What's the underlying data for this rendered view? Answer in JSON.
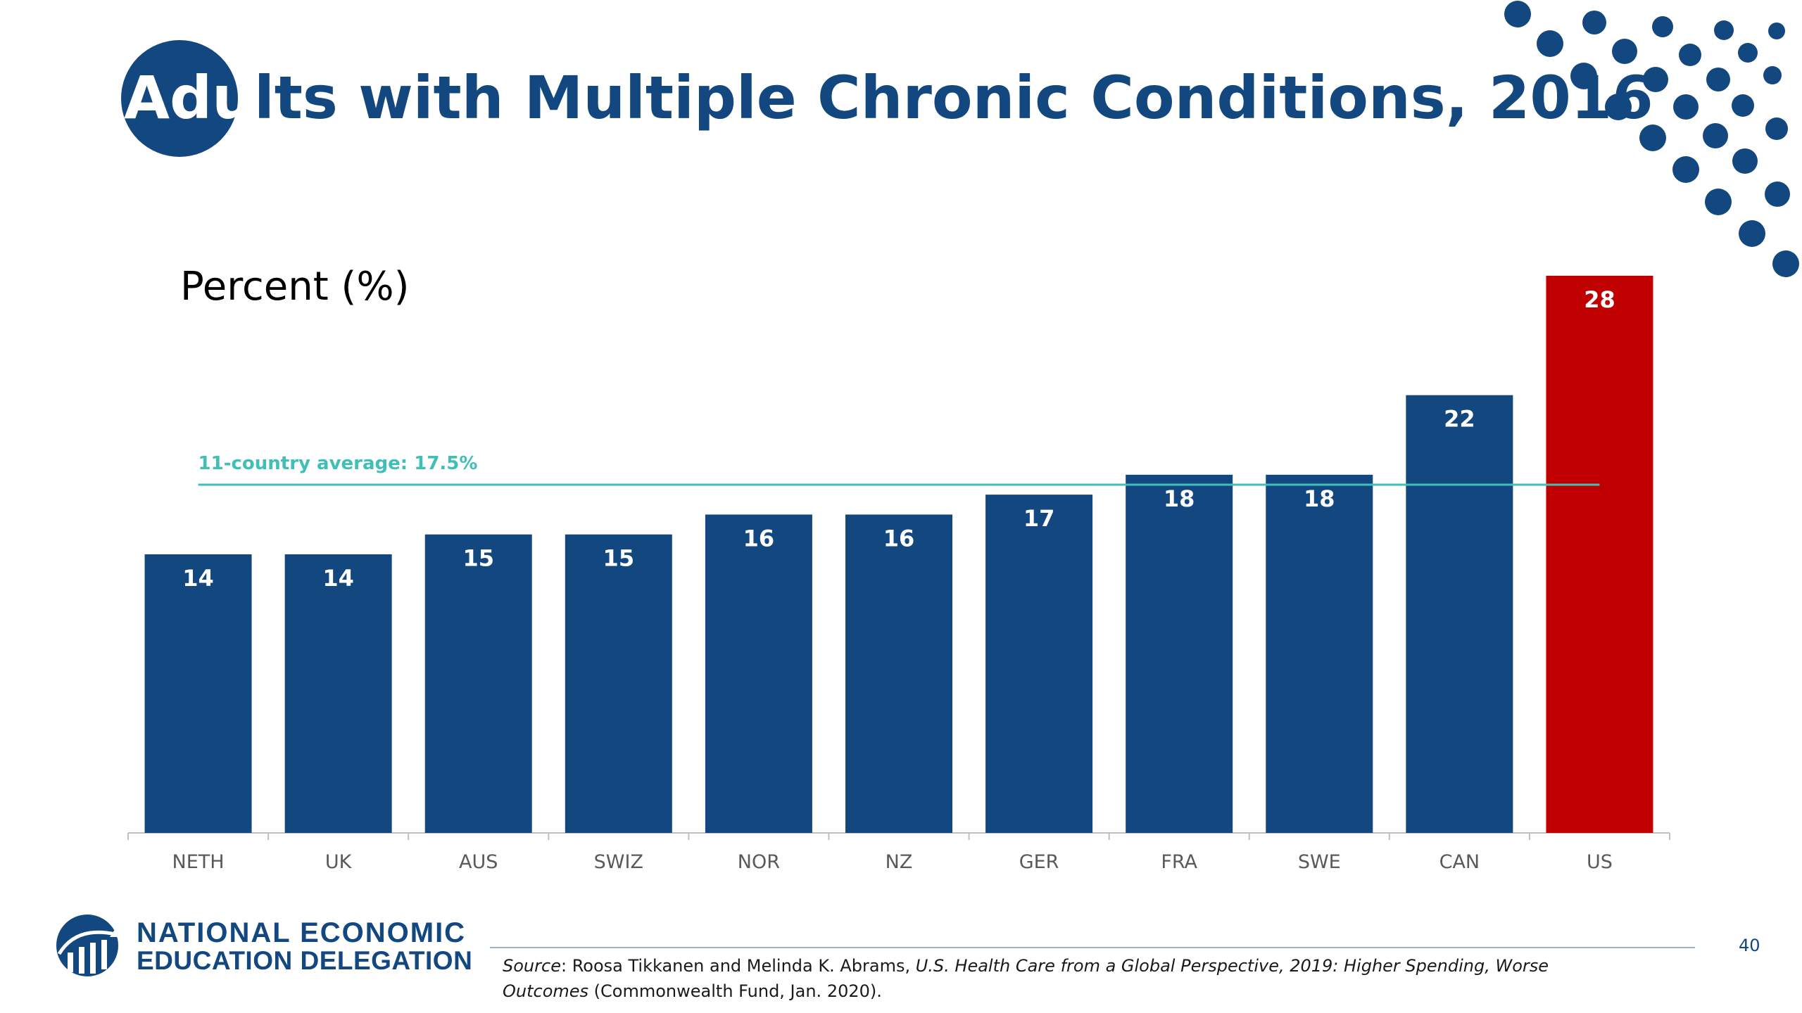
{
  "slide": {
    "title_lead": "Adu",
    "title_rest": "lts with Multiple Chronic Conditions, 2016",
    "page_number": "40"
  },
  "chart_data": {
    "type": "bar",
    "title": "Adults with Multiple Chronic Conditions, 2016",
    "ylabel": "Percent (%)",
    "xlabel": "",
    "categories": [
      "NETH",
      "UK",
      "AUS",
      "SWIZ",
      "NOR",
      "NZ",
      "GER",
      "FRA",
      "SWE",
      "CAN",
      "US"
    ],
    "values": [
      14,
      14,
      15,
      15,
      16,
      16,
      17,
      18,
      18,
      22,
      28
    ],
    "data_labels": [
      "14",
      "14",
      "15",
      "15",
      "16",
      "16",
      "17",
      "18",
      "18",
      "22",
      "28"
    ],
    "ylim": [
      0,
      28
    ],
    "grid": false,
    "colors": {
      "bar": "#13477f",
      "highlight": "#c00000",
      "highlight_category": "US",
      "reference_line": "#3fbfb7",
      "axis": "#bfbfbf",
      "tick_label": "#595959"
    },
    "reference_line": {
      "label": "11-country average: 17.5%",
      "value": 17.5
    }
  },
  "footer": {
    "org_line1": "NATIONAL ECONOMIC",
    "org_line2": "EDUCATION DELEGATION",
    "source_label": "Source",
    "source_sep": ": ",
    "source_authors": "Roosa Tikkanen and Melinda K. Abrams, ",
    "source_title": "U.S. Health Care from a Global Perspective, 2019: Higher Spending, Worse Outcomes",
    "source_tail": " (Commonwealth Fund, Jan. 2020)."
  },
  "colors": {
    "brand_blue": "#13477f"
  }
}
